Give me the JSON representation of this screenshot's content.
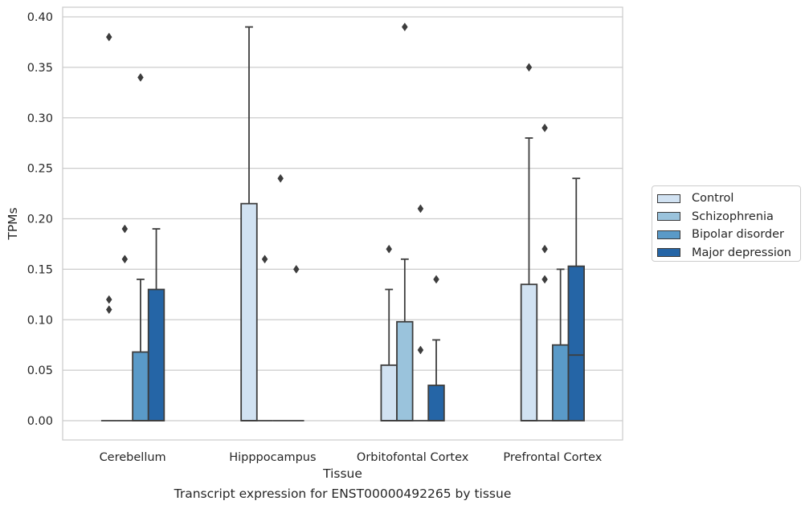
{
  "chart_data": {
    "type": "box",
    "caption": "Transcript expression for ENST00000492265 by tissue",
    "xlabel": "Tissue",
    "ylabel": "TPMs",
    "ylim": [
      -0.018,
      0.41
    ],
    "yticks": [
      "0.00",
      "0.05",
      "0.10",
      "0.15",
      "0.20",
      "0.25",
      "0.30",
      "0.35",
      "0.40"
    ],
    "grid": true,
    "legend_position": "right",
    "categories": [
      "Cerebellum",
      "Hipppocampus",
      "Orbitofontal Cortex",
      "Prefrontal Cortex"
    ],
    "series": [
      {
        "name": "Control",
        "color": "#d1e2f2",
        "boxes": [
          {
            "q1": 0,
            "median": 0,
            "q3": 0,
            "whisker_low": 0,
            "whisker_high": 0,
            "outliers": [
              0.38,
              0.12,
              0.11
            ]
          },
          {
            "q1": 0,
            "median": 0,
            "q3": 0.215,
            "whisker_low": 0,
            "whisker_high": 0.39,
            "outliers": []
          },
          {
            "q1": 0,
            "median": 0,
            "q3": 0.055,
            "whisker_low": 0,
            "whisker_high": 0.13,
            "outliers": [
              0.17
            ]
          },
          {
            "q1": 0,
            "median": 0,
            "q3": 0.135,
            "whisker_low": 0,
            "whisker_high": 0.28,
            "outliers": [
              0.35
            ]
          }
        ]
      },
      {
        "name": "Schizophrenia",
        "color": "#9ac3dc",
        "boxes": [
          {
            "q1": 0,
            "median": 0,
            "q3": 0,
            "whisker_low": 0,
            "whisker_high": 0,
            "outliers": [
              0.19,
              0.16
            ]
          },
          {
            "q1": 0,
            "median": 0,
            "q3": 0,
            "whisker_low": 0,
            "whisker_high": 0,
            "outliers": [
              0.16
            ]
          },
          {
            "q1": 0,
            "median": 0,
            "q3": 0.098,
            "whisker_low": 0,
            "whisker_high": 0.16,
            "outliers": [
              0.39
            ]
          },
          {
            "q1": 0,
            "median": 0,
            "q3": 0,
            "whisker_low": 0,
            "whisker_high": 0,
            "outliers": [
              0.29,
              0.17,
              0.14
            ]
          }
        ]
      },
      {
        "name": "Bipolar disorder",
        "color": "#5a9ac8",
        "boxes": [
          {
            "q1": 0,
            "median": 0,
            "q3": 0.068,
            "whisker_low": 0,
            "whisker_high": 0.14,
            "outliers": [
              0.34
            ]
          },
          {
            "q1": 0,
            "median": 0,
            "q3": 0,
            "whisker_low": 0,
            "whisker_high": 0,
            "outliers": [
              0.24
            ]
          },
          {
            "q1": 0,
            "median": 0,
            "q3": 0,
            "whisker_low": 0,
            "whisker_high": 0,
            "outliers": [
              0.21,
              0.07
            ]
          },
          {
            "q1": 0,
            "median": 0,
            "q3": 0.075,
            "whisker_low": 0,
            "whisker_high": 0.15,
            "outliers": []
          }
        ]
      },
      {
        "name": "Major depression",
        "color": "#2565a6",
        "boxes": [
          {
            "q1": 0,
            "median": 0,
            "q3": 0.13,
            "whisker_low": 0,
            "whisker_high": 0.19,
            "outliers": []
          },
          {
            "q1": 0,
            "median": 0,
            "q3": 0,
            "whisker_low": 0,
            "whisker_high": 0,
            "outliers": [
              0.15
            ]
          },
          {
            "q1": 0,
            "median": 0,
            "q3": 0.035,
            "whisker_low": 0,
            "whisker_high": 0.08,
            "outliers": [
              0.14
            ]
          },
          {
            "q1": 0,
            "median": 0.065,
            "q3": 0.153,
            "whisker_low": 0,
            "whisker_high": 0.24,
            "outliers": []
          }
        ]
      }
    ]
  }
}
